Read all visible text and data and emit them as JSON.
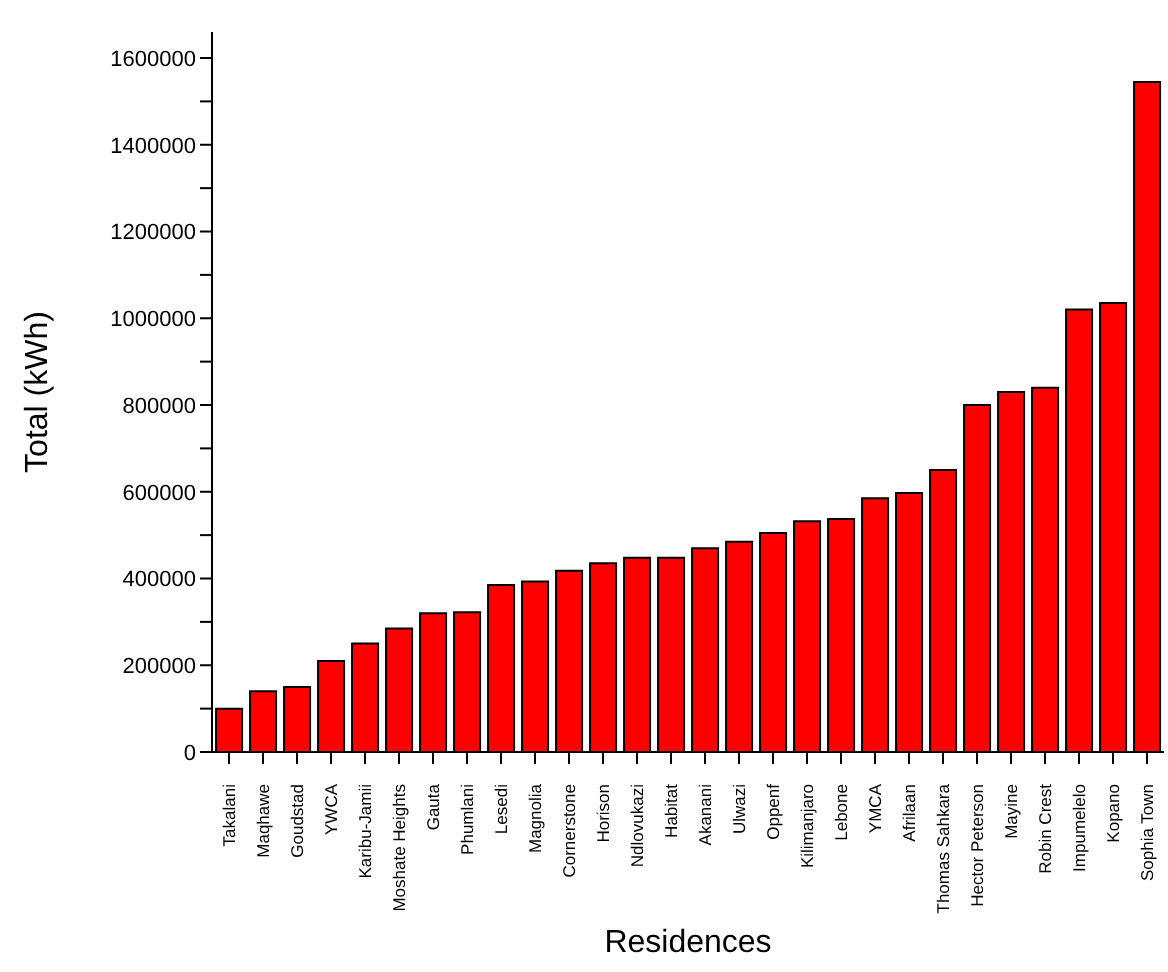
{
  "chart_data": {
    "type": "bar",
    "xlabel": "Residences",
    "ylabel": "Total (kWh)",
    "categories": [
      "Takalani",
      "Maqhawe",
      "Goudstad",
      "YWCA",
      "Karibu-Jamii",
      "Moshate Heights",
      "Gauta",
      "Phumlani",
      "Lesedi",
      "Magnolia",
      "Cornerstone",
      "Horison",
      "Ndlovukazi",
      "Habitat",
      "Akanani",
      "Ulwazi",
      "Oppenf",
      "Kilimanjaro",
      "Lebone",
      "YMCA",
      "Afrilaan",
      "Thomas Sahkara",
      "Hector Peterson",
      "Mayine",
      "Robin Crest",
      "Impumelelo",
      "Kopano",
      "Sophia Town"
    ],
    "values": [
      100000,
      140000,
      150000,
      210000,
      250000,
      285000,
      320000,
      322000,
      385000,
      393000,
      418000,
      435000,
      448000,
      448000,
      470000,
      485000,
      505000,
      532000,
      537000,
      585000,
      597000,
      650000,
      800000,
      830000,
      840000,
      1020000,
      1035000,
      1545000
    ],
    "color": "#ff0000",
    "ylim": [
      0,
      1660000
    ],
    "yticks": [
      0,
      {
        "value": 100000,
        "label": null
      },
      200000,
      {
        "value": 300000,
        "label": null
      },
      400000,
      {
        "value": 500000,
        "label": null
      },
      600000,
      {
        "value": 700000,
        "label": null
      },
      800000,
      {
        "value": 900000,
        "label": null
      },
      1000000,
      {
        "value": 1100000,
        "label": null
      },
      1200000,
      {
        "value": 1300000,
        "label": null
      },
      1400000,
      {
        "value": 1500000,
        "label": null
      },
      1600000
    ],
    "grid": false,
    "legend": false
  }
}
